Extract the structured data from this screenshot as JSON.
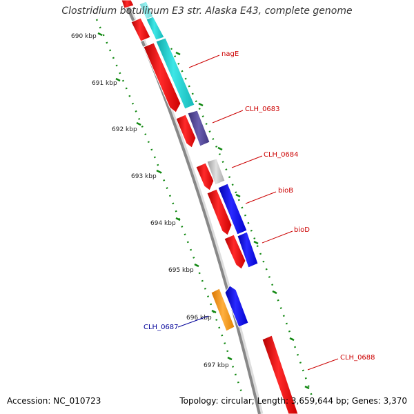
{
  "title": "Clostridium botulinum E3 str. Alaska E43, complete genome",
  "footer": {
    "accession": "Accession: NC_010723",
    "topology": "Topology: circular; Length: 3,659,644 bp; Genes: 3,370"
  },
  "colors": {
    "forward_cds": "#ff0000",
    "label_red": "#cc0000",
    "label_blue": "#000099",
    "tick_green": "#118811",
    "backbone": "#888888",
    "cyan": "#22d3d3",
    "purple": "#4b3f8f",
    "grey": "#c0c0c0",
    "blue": "#0000ff",
    "orange": "#ff9900"
  },
  "kbp_labels": [
    "690 kbp",
    "691 kbp",
    "692 kbp",
    "693 kbp",
    "694 kbp",
    "695 kbp",
    "696 kbp",
    "697 kbp"
  ],
  "gene_labels": [
    "nagE",
    "CLH_0683",
    "CLH_0684",
    "bioB",
    "bioD",
    "CLH_0687",
    "CLH_0688"
  ]
}
